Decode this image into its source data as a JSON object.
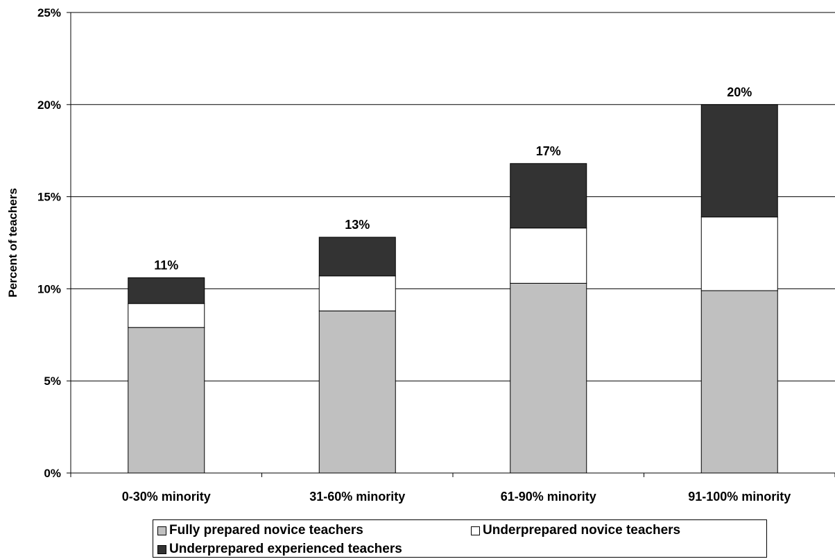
{
  "chart_data": {
    "type": "bar",
    "stacked": true,
    "title": "",
    "xlabel": "",
    "ylabel": "Percent of teachers",
    "ylim": [
      0,
      25
    ],
    "yticks": [
      "0%",
      "5%",
      "10%",
      "15%",
      "20%",
      "25%"
    ],
    "grid": true,
    "legend_position": "bottom",
    "categories": [
      "0-30% minority",
      "31-60% minority",
      "61-90% minority",
      "91-100% minority"
    ],
    "series": [
      {
        "name": "Fully prepared novice teachers",
        "color": "#c0c0c0",
        "values": [
          7.9,
          8.8,
          10.3,
          9.9
        ]
      },
      {
        "name": "Underprepared novice teachers",
        "color": "#ffffff",
        "values": [
          1.3,
          1.9,
          3.0,
          4.0
        ]
      },
      {
        "name": "Underprepared experienced teachers",
        "color": "#333333",
        "values": [
          1.4,
          2.1,
          3.5,
          6.1
        ]
      }
    ],
    "total_labels": [
      "11%",
      "13%",
      "17%",
      "20%"
    ]
  }
}
